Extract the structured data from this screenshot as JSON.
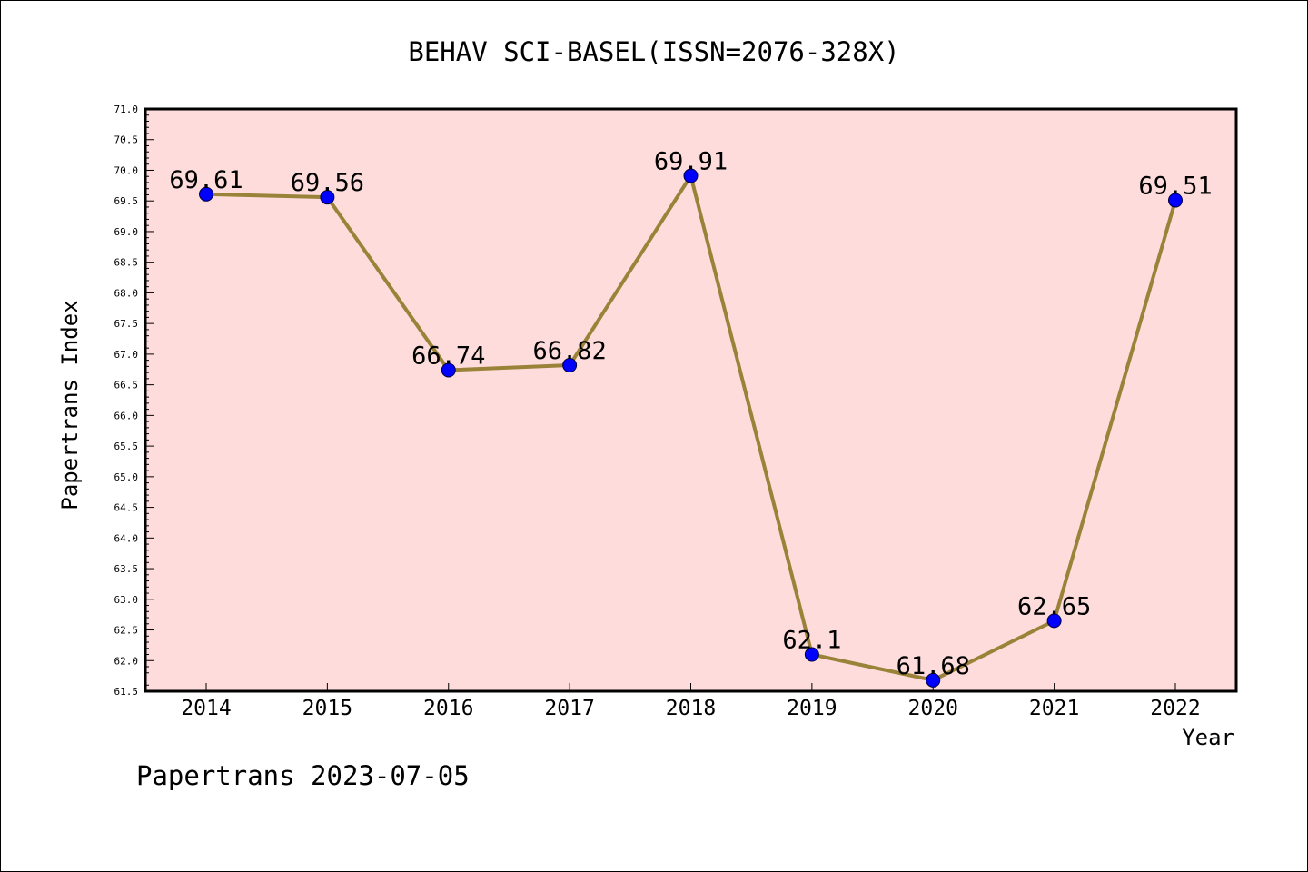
{
  "chart_data": {
    "type": "line",
    "title": "BEHAV SCI-BASEL(ISSN=2076-328X)",
    "xlabel": "Year",
    "ylabel": "Papertrans Index",
    "categories": [
      "2014",
      "2015",
      "2016",
      "2017",
      "2018",
      "2019",
      "2020",
      "2021",
      "2022"
    ],
    "series": [
      {
        "values": [
          69.61,
          69.56,
          66.74,
          66.82,
          69.91,
          62.1,
          61.68,
          62.65,
          69.51
        ],
        "labels": [
          "69.61",
          "69.56",
          "66.74",
          "66.82",
          "69.91",
          "62.1",
          "61.68",
          "62.65",
          "69.51"
        ]
      }
    ],
    "ylim": [
      61.5,
      71.0
    ],
    "yticks": [
      "61.5",
      "62.0",
      "62.5",
      "63.0",
      "63.5",
      "64.0",
      "64.5",
      "65.0",
      "65.5",
      "66.0",
      "66.5",
      "67.0",
      "67.5",
      "68.0",
      "68.5",
      "69.0",
      "69.5",
      "70.0",
      "70.5",
      "71.0"
    ],
    "grid": false,
    "colors": {
      "plot_background": "#fddcdb",
      "line": "#9a8238",
      "marker": "#0000ff"
    }
  },
  "footer": "Papertrans 2023-07-05"
}
